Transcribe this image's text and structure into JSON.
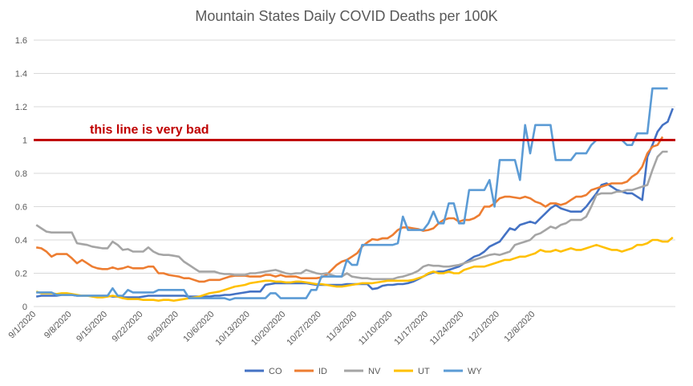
{
  "chart_data": {
    "type": "line",
    "title": "Mountain States Daily COVID Deaths per 100K",
    "xlabel": "",
    "ylabel": "",
    "ylim": [
      0,
      1.6
    ],
    "yticks": [
      "0",
      "0.2",
      "0.4",
      "0.6",
      "0.8",
      "1",
      "1.2",
      "1.4",
      "1.6"
    ],
    "xtick_labels": [
      "9/1/2020",
      "9/8/2020",
      "9/15/2020",
      "9/22/2020",
      "9/29/2020",
      "10/6/2020",
      "10/13/2020",
      "10/20/2020",
      "10/27/2020",
      "11/3/2020",
      "11/10/2020",
      "11/17/2020",
      "11/24/2020",
      "12/1/2020",
      "12/8/2020"
    ],
    "grid": true,
    "legend_position": "bottom",
    "threshold": {
      "value": 1,
      "label": "this line is very bad",
      "color": "#c00000"
    },
    "series": [
      {
        "name": "CO",
        "color": "#4472c4",
        "values": [
          0.06,
          0.065,
          0.065,
          0.065,
          0.065,
          0.07,
          0.07,
          0.07,
          0.065,
          0.065,
          0.065,
          0.065,
          0.065,
          0.065,
          0.065,
          0.06,
          0.06,
          0.055,
          0.055,
          0.055,
          0.055,
          0.06,
          0.065,
          0.065,
          0.065,
          0.065,
          0.065,
          0.065,
          0.065,
          0.065,
          0.06,
          0.06,
          0.06,
          0.06,
          0.06,
          0.065,
          0.065,
          0.07,
          0.07,
          0.075,
          0.08,
          0.085,
          0.09,
          0.09,
          0.09,
          0.13,
          0.135,
          0.14,
          0.14,
          0.14,
          0.14,
          0.14,
          0.14,
          0.14,
          0.135,
          0.13,
          0.13,
          0.13,
          0.13,
          0.13,
          0.13,
          0.135,
          0.135,
          0.135,
          0.135,
          0.135,
          0.105,
          0.11,
          0.125,
          0.13,
          0.13,
          0.135,
          0.135,
          0.14,
          0.15,
          0.165,
          0.18,
          0.195,
          0.205,
          0.21,
          0.21,
          0.22,
          0.23,
          0.24,
          0.26,
          0.28,
          0.3,
          0.31,
          0.33,
          0.36,
          0.375,
          0.39,
          0.43,
          0.47,
          0.46,
          0.49,
          0.5,
          0.51,
          0.5,
          0.53,
          0.56,
          0.59,
          0.61,
          0.59,
          0.58,
          0.57,
          0.57,
          0.57,
          0.6,
          0.64,
          0.68,
          0.73,
          0.74,
          0.72,
          0.7,
          0.69,
          0.68,
          0.68,
          0.66,
          0.64,
          0.9,
          0.97,
          1.05,
          1.09,
          1.11,
          1.19
        ]
      },
      {
        "name": "ID",
        "color": "#ed7d31",
        "values": [
          0.355,
          0.35,
          0.33,
          0.3,
          0.315,
          0.315,
          0.315,
          0.29,
          0.26,
          0.28,
          0.26,
          0.24,
          0.23,
          0.225,
          0.225,
          0.235,
          0.225,
          0.23,
          0.24,
          0.23,
          0.23,
          0.23,
          0.24,
          0.24,
          0.2,
          0.2,
          0.19,
          0.185,
          0.18,
          0.17,
          0.17,
          0.16,
          0.15,
          0.15,
          0.16,
          0.16,
          0.16,
          0.17,
          0.18,
          0.185,
          0.185,
          0.185,
          0.18,
          0.18,
          0.18,
          0.19,
          0.19,
          0.18,
          0.19,
          0.18,
          0.18,
          0.18,
          0.17,
          0.17,
          0.17,
          0.17,
          0.175,
          0.19,
          0.22,
          0.25,
          0.27,
          0.28,
          0.3,
          0.32,
          0.36,
          0.385,
          0.405,
          0.4,
          0.41,
          0.41,
          0.43,
          0.46,
          0.475,
          0.475,
          0.47,
          0.465,
          0.455,
          0.46,
          0.47,
          0.5,
          0.52,
          0.53,
          0.53,
          0.51,
          0.52,
          0.52,
          0.53,
          0.55,
          0.6,
          0.6,
          0.62,
          0.65,
          0.66,
          0.66,
          0.655,
          0.65,
          0.66,
          0.65,
          0.63,
          0.62,
          0.6,
          0.62,
          0.62,
          0.61,
          0.62,
          0.64,
          0.66,
          0.66,
          0.67,
          0.7,
          0.71,
          0.72,
          0.73,
          0.74,
          0.74,
          0.74,
          0.75,
          0.78,
          0.8,
          0.84,
          0.92,
          0.96,
          0.97,
          1.02
        ]
      },
      {
        "name": "NV",
        "color": "#a5a5a5",
        "values": [
          0.49,
          0.47,
          0.45,
          0.445,
          0.445,
          0.445,
          0.445,
          0.445,
          0.38,
          0.375,
          0.37,
          0.36,
          0.355,
          0.35,
          0.35,
          0.39,
          0.37,
          0.34,
          0.345,
          0.33,
          0.33,
          0.33,
          0.355,
          0.33,
          0.315,
          0.31,
          0.31,
          0.305,
          0.3,
          0.27,
          0.25,
          0.23,
          0.21,
          0.21,
          0.21,
          0.21,
          0.2,
          0.195,
          0.195,
          0.19,
          0.19,
          0.19,
          0.2,
          0.2,
          0.205,
          0.21,
          0.215,
          0.22,
          0.21,
          0.2,
          0.195,
          0.2,
          0.2,
          0.22,
          0.21,
          0.2,
          0.195,
          0.2,
          0.19,
          0.18,
          0.18,
          0.2,
          0.18,
          0.175,
          0.17,
          0.17,
          0.165,
          0.165,
          0.165,
          0.165,
          0.165,
          0.175,
          0.18,
          0.19,
          0.2,
          0.215,
          0.24,
          0.25,
          0.245,
          0.245,
          0.24,
          0.24,
          0.245,
          0.25,
          0.26,
          0.27,
          0.28,
          0.29,
          0.3,
          0.31,
          0.315,
          0.31,
          0.32,
          0.33,
          0.37,
          0.38,
          0.39,
          0.4,
          0.43,
          0.44,
          0.46,
          0.48,
          0.47,
          0.49,
          0.5,
          0.52,
          0.52,
          0.52,
          0.54,
          0.6,
          0.67,
          0.68,
          0.68,
          0.68,
          0.69,
          0.69,
          0.7,
          0.7,
          0.71,
          0.72,
          0.73,
          0.82,
          0.9,
          0.93,
          0.93
        ]
      },
      {
        "name": "UT",
        "color": "#ffc000",
        "values": [
          0.09,
          0.08,
          0.08,
          0.08,
          0.075,
          0.08,
          0.08,
          0.075,
          0.07,
          0.065,
          0.065,
          0.06,
          0.055,
          0.055,
          0.06,
          0.065,
          0.06,
          0.05,
          0.045,
          0.045,
          0.045,
          0.04,
          0.04,
          0.04,
          0.035,
          0.04,
          0.04,
          0.035,
          0.04,
          0.045,
          0.05,
          0.055,
          0.06,
          0.07,
          0.08,
          0.085,
          0.09,
          0.1,
          0.11,
          0.12,
          0.125,
          0.13,
          0.14,
          0.145,
          0.15,
          0.155,
          0.155,
          0.15,
          0.15,
          0.145,
          0.145,
          0.15,
          0.15,
          0.145,
          0.14,
          0.135,
          0.135,
          0.13,
          0.125,
          0.12,
          0.12,
          0.125,
          0.13,
          0.135,
          0.14,
          0.14,
          0.14,
          0.145,
          0.15,
          0.155,
          0.155,
          0.155,
          0.155,
          0.155,
          0.16,
          0.17,
          0.18,
          0.2,
          0.21,
          0.2,
          0.2,
          0.21,
          0.2,
          0.2,
          0.22,
          0.23,
          0.24,
          0.24,
          0.24,
          0.25,
          0.26,
          0.27,
          0.28,
          0.28,
          0.29,
          0.3,
          0.3,
          0.31,
          0.32,
          0.34,
          0.33,
          0.33,
          0.34,
          0.33,
          0.34,
          0.35,
          0.34,
          0.34,
          0.35,
          0.36,
          0.37,
          0.36,
          0.35,
          0.34,
          0.34,
          0.33,
          0.34,
          0.35,
          0.37,
          0.37,
          0.38,
          0.4,
          0.4,
          0.39,
          0.39,
          0.415
        ]
      },
      {
        "name": "WY",
        "color": "#5b9bd5",
        "values": [
          0.085,
          0.085,
          0.085,
          0.085,
          0.07,
          0.07,
          0.07,
          0.07,
          0.065,
          0.065,
          0.065,
          0.065,
          0.065,
          0.065,
          0.065,
          0.11,
          0.065,
          0.065,
          0.1,
          0.085,
          0.085,
          0.085,
          0.085,
          0.085,
          0.1,
          0.1,
          0.1,
          0.1,
          0.1,
          0.1,
          0.05,
          0.05,
          0.05,
          0.05,
          0.05,
          0.05,
          0.05,
          0.05,
          0.04,
          0.05,
          0.05,
          0.05,
          0.05,
          0.05,
          0.05,
          0.05,
          0.08,
          0.08,
          0.05,
          0.05,
          0.05,
          0.05,
          0.05,
          0.05,
          0.1,
          0.1,
          0.18,
          0.18,
          0.18,
          0.18,
          0.18,
          0.28,
          0.25,
          0.25,
          0.37,
          0.37,
          0.37,
          0.37,
          0.37,
          0.37,
          0.37,
          0.38,
          0.54,
          0.46,
          0.46,
          0.46,
          0.46,
          0.5,
          0.57,
          0.5,
          0.5,
          0.62,
          0.62,
          0.5,
          0.5,
          0.7,
          0.7,
          0.7,
          0.7,
          0.76,
          0.6,
          0.88,
          0.88,
          0.88,
          0.88,
          0.76,
          1.09,
          0.92,
          1.09,
          1.09,
          1.09,
          1.09,
          0.88,
          0.88,
          0.88,
          0.88,
          0.92,
          0.92,
          0.92,
          0.97,
          1.0,
          1.0,
          1.0,
          1.0,
          1.0,
          1.0,
          0.97,
          0.97,
          1.04,
          1.04,
          1.04,
          1.31,
          1.31,
          1.31,
          1.31
        ]
      }
    ]
  }
}
